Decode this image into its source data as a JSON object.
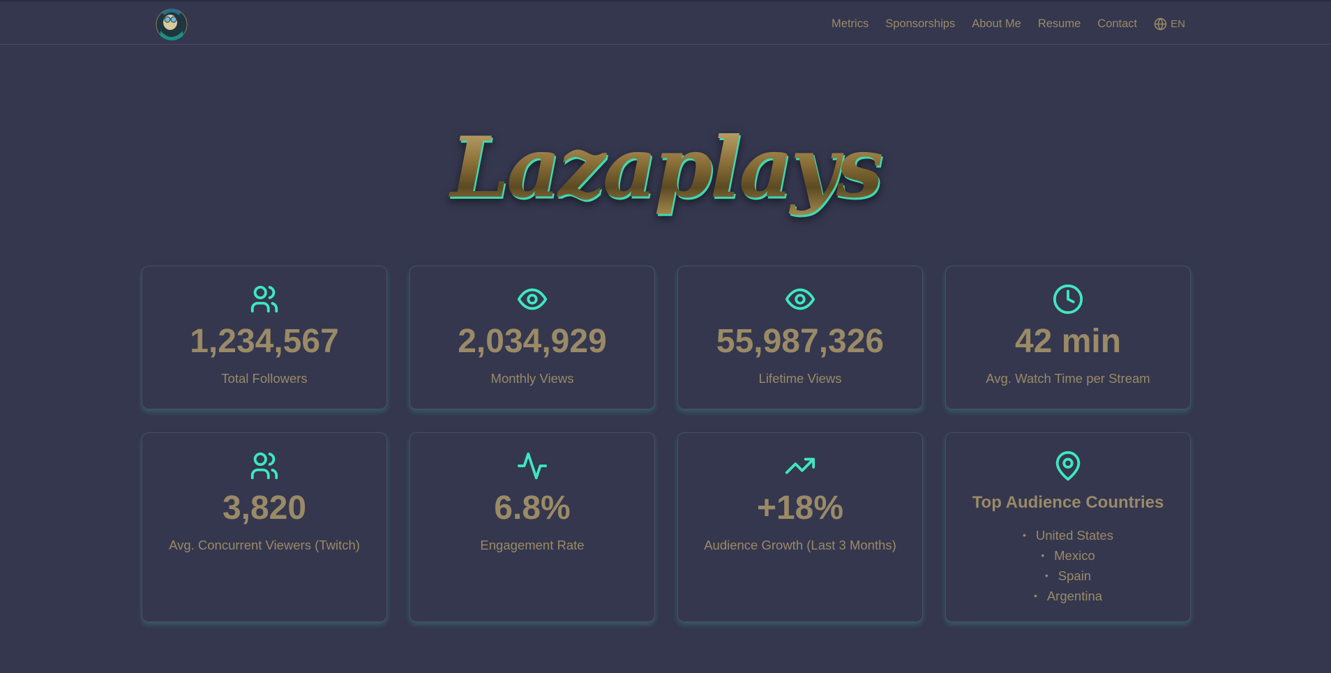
{
  "nav": {
    "items": [
      {
        "label": "Metrics"
      },
      {
        "label": "Sponsorships"
      },
      {
        "label": "About Me"
      },
      {
        "label": "Resume"
      },
      {
        "label": "Contact"
      }
    ],
    "language": "EN",
    "language_icon": "globe-icon"
  },
  "hero": {
    "title": "Lazaplays"
  },
  "colors": {
    "background": "#34374e",
    "text": "#9a8a66",
    "accent": "#3fe8c0"
  },
  "metrics": [
    {
      "icon": "users-icon",
      "value": "1,234,567",
      "label": "Total Followers"
    },
    {
      "icon": "eye-icon",
      "value": "2,034,929",
      "label": "Monthly Views"
    },
    {
      "icon": "eye-icon",
      "value": "55,987,326",
      "label": "Lifetime Views"
    },
    {
      "icon": "clock-icon",
      "value": "42 min",
      "label": "Avg. Watch Time per Stream"
    },
    {
      "icon": "users-icon",
      "value": "3,820",
      "label": "Avg. Concurrent Viewers (Twitch)"
    },
    {
      "icon": "activity-icon",
      "value": "6.8%",
      "label": "Engagement Rate"
    },
    {
      "icon": "trending-up-icon",
      "value": "+18%",
      "label": "Audience Growth (Last 3 Months)"
    }
  ],
  "countries": {
    "icon": "map-pin-icon",
    "title": "Top Audience Countries",
    "items": [
      "United States",
      "Mexico",
      "Spain",
      "Argentina"
    ]
  }
}
